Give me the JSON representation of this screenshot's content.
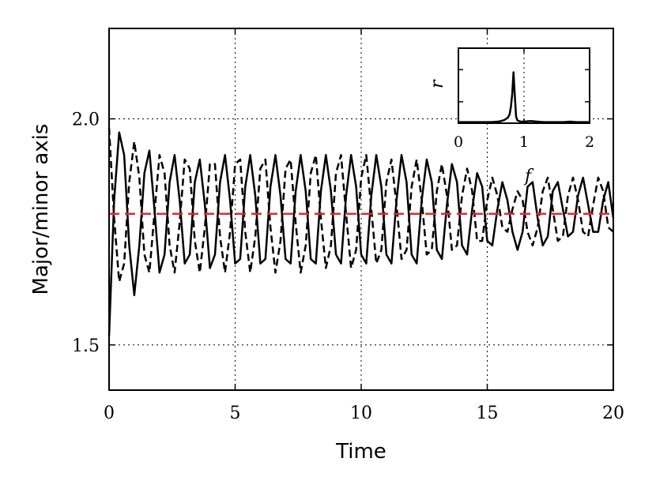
{
  "chart_data": {
    "type": "line",
    "title": "",
    "xlabel": "Time",
    "ylabel": "Major/minor axis",
    "xlim": [
      0,
      20
    ],
    "ylim": [
      1.4,
      2.2
    ],
    "xticks": [
      "0",
      "5",
      "10",
      "15",
      "20"
    ],
    "yticks": [
      "1.5",
      "2.0"
    ],
    "grid": true,
    "series": [
      {
        "style": "solid",
        "color": "#000000",
        "x": [
          0.0,
          0.2,
          0.4,
          0.6,
          0.8,
          1.0,
          1.2,
          1.4,
          1.6,
          1.8,
          2.0,
          2.2,
          2.4,
          2.6,
          2.8,
          3.0,
          3.2,
          3.4,
          3.6,
          3.8,
          4.0,
          4.2,
          4.4,
          4.6,
          4.8,
          5.0,
          5.2,
          5.4,
          5.6,
          5.8,
          6.0,
          6.2,
          6.4,
          6.6,
          6.8,
          7.0,
          7.2,
          7.4,
          7.6,
          7.8,
          8.0,
          8.2,
          8.4,
          8.6,
          8.8,
          9.0,
          9.2,
          9.4,
          9.6,
          9.8,
          10.0,
          10.2,
          10.4,
          10.6,
          10.8,
          11.0,
          11.2,
          11.4,
          11.6,
          11.8,
          12.0,
          12.2,
          12.4,
          12.6,
          12.8,
          13.0,
          13.2,
          13.4,
          13.6,
          13.8,
          14.0,
          14.2,
          14.4,
          14.6,
          14.8,
          15.0,
          15.2,
          15.4,
          15.6,
          15.8,
          16.0,
          16.2,
          16.4,
          16.6,
          16.8,
          17.0,
          17.2,
          17.4,
          17.6,
          17.8,
          18.0,
          18.2,
          18.4,
          18.6,
          18.8,
          19.0,
          19.2,
          19.4,
          19.6,
          19.8,
          20.0
        ],
        "y": [
          1.52,
          1.82,
          1.97,
          1.92,
          1.72,
          1.61,
          1.72,
          1.88,
          1.93,
          1.8,
          1.66,
          1.7,
          1.86,
          1.92,
          1.82,
          1.68,
          1.7,
          1.86,
          1.91,
          1.81,
          1.67,
          1.7,
          1.86,
          1.92,
          1.82,
          1.68,
          1.69,
          1.85,
          1.92,
          1.83,
          1.68,
          1.69,
          1.85,
          1.92,
          1.83,
          1.69,
          1.68,
          1.84,
          1.92,
          1.84,
          1.69,
          1.68,
          1.84,
          1.92,
          1.84,
          1.7,
          1.68,
          1.83,
          1.92,
          1.85,
          1.7,
          1.68,
          1.83,
          1.92,
          1.85,
          1.7,
          1.68,
          1.82,
          1.92,
          1.86,
          1.7,
          1.68,
          1.82,
          1.91,
          1.86,
          1.71,
          1.69,
          1.81,
          1.9,
          1.86,
          1.72,
          1.7,
          1.8,
          1.88,
          1.85,
          1.73,
          1.72,
          1.8,
          1.86,
          1.82,
          1.75,
          1.71,
          1.75,
          1.85,
          1.86,
          1.78,
          1.72,
          1.74,
          1.84,
          1.86,
          1.8,
          1.74,
          1.75,
          1.83,
          1.87,
          1.81,
          1.75,
          1.75,
          1.82,
          1.86,
          1.78
        ]
      },
      {
        "style": "dashed",
        "color": "#000000",
        "x": [
          0.0,
          0.2,
          0.4,
          0.6,
          0.8,
          1.0,
          1.2,
          1.4,
          1.6,
          1.8,
          2.0,
          2.2,
          2.4,
          2.6,
          2.8,
          3.0,
          3.2,
          3.4,
          3.6,
          3.8,
          4.0,
          4.2,
          4.4,
          4.6,
          4.8,
          5.0,
          5.2,
          5.4,
          5.6,
          5.8,
          6.0,
          6.2,
          6.4,
          6.6,
          6.8,
          7.0,
          7.2,
          7.4,
          7.6,
          7.8,
          8.0,
          8.2,
          8.4,
          8.6,
          8.8,
          9.0,
          9.2,
          9.4,
          9.6,
          9.8,
          10.0,
          10.2,
          10.4,
          10.6,
          10.8,
          11.0,
          11.2,
          11.4,
          11.6,
          11.8,
          12.0,
          12.2,
          12.4,
          12.6,
          12.8,
          13.0,
          13.2,
          13.4,
          13.6,
          13.8,
          14.0,
          14.2,
          14.4,
          14.6,
          14.8,
          15.0,
          15.2,
          15.4,
          15.6,
          15.8,
          16.0,
          16.2,
          16.4,
          16.6,
          16.8,
          17.0,
          17.2,
          17.4,
          17.6,
          17.8,
          18.0,
          18.2,
          18.4,
          18.6,
          18.8,
          19.0,
          19.2,
          19.4,
          19.6,
          19.8,
          20.0
        ],
        "y": [
          1.98,
          1.78,
          1.64,
          1.68,
          1.86,
          1.95,
          1.87,
          1.7,
          1.66,
          1.79,
          1.92,
          1.88,
          1.72,
          1.66,
          1.77,
          1.91,
          1.89,
          1.73,
          1.66,
          1.76,
          1.9,
          1.9,
          1.74,
          1.66,
          1.75,
          1.9,
          1.91,
          1.75,
          1.66,
          1.74,
          1.89,
          1.91,
          1.76,
          1.66,
          1.73,
          1.89,
          1.91,
          1.77,
          1.66,
          1.72,
          1.88,
          1.92,
          1.78,
          1.67,
          1.72,
          1.88,
          1.92,
          1.79,
          1.67,
          1.71,
          1.87,
          1.92,
          1.8,
          1.68,
          1.71,
          1.86,
          1.91,
          1.81,
          1.69,
          1.71,
          1.85,
          1.91,
          1.82,
          1.7,
          1.71,
          1.84,
          1.9,
          1.83,
          1.71,
          1.72,
          1.83,
          1.89,
          1.84,
          1.73,
          1.73,
          1.82,
          1.87,
          1.83,
          1.76,
          1.75,
          1.8,
          1.84,
          1.82,
          1.75,
          1.72,
          1.76,
          1.84,
          1.87,
          1.8,
          1.73,
          1.74,
          1.83,
          1.87,
          1.82,
          1.75,
          1.74,
          1.81,
          1.87,
          1.84,
          1.76,
          1.75
        ]
      }
    ],
    "reference_line": {
      "y": 1.79,
      "style": "dashed",
      "color": "#e8262b"
    },
    "inset": {
      "type": "line",
      "xlabel": "f",
      "ylabel": "r",
      "xlim": [
        0,
        2
      ],
      "xticks": [
        "0",
        "1",
        "2"
      ],
      "grid": true,
      "x": [
        0.0,
        0.1,
        0.2,
        0.3,
        0.4,
        0.5,
        0.6,
        0.65,
        0.7,
        0.75,
        0.78,
        0.8,
        0.82,
        0.84,
        0.86,
        0.88,
        0.9,
        0.95,
        1.0,
        1.1,
        1.2,
        1.3,
        1.4,
        1.5,
        1.6,
        1.7,
        1.8,
        1.9,
        2.0
      ],
      "y": [
        0.02,
        0.02,
        0.02,
        0.02,
        0.02,
        0.02,
        0.03,
        0.04,
        0.06,
        0.1,
        0.16,
        0.3,
        0.55,
        0.95,
        0.5,
        0.12,
        0.05,
        0.03,
        0.03,
        0.04,
        0.03,
        0.02,
        0.02,
        0.02,
        0.02,
        0.03,
        0.02,
        0.02,
        0.02
      ],
      "ylim": [
        0,
        1.4
      ]
    }
  }
}
